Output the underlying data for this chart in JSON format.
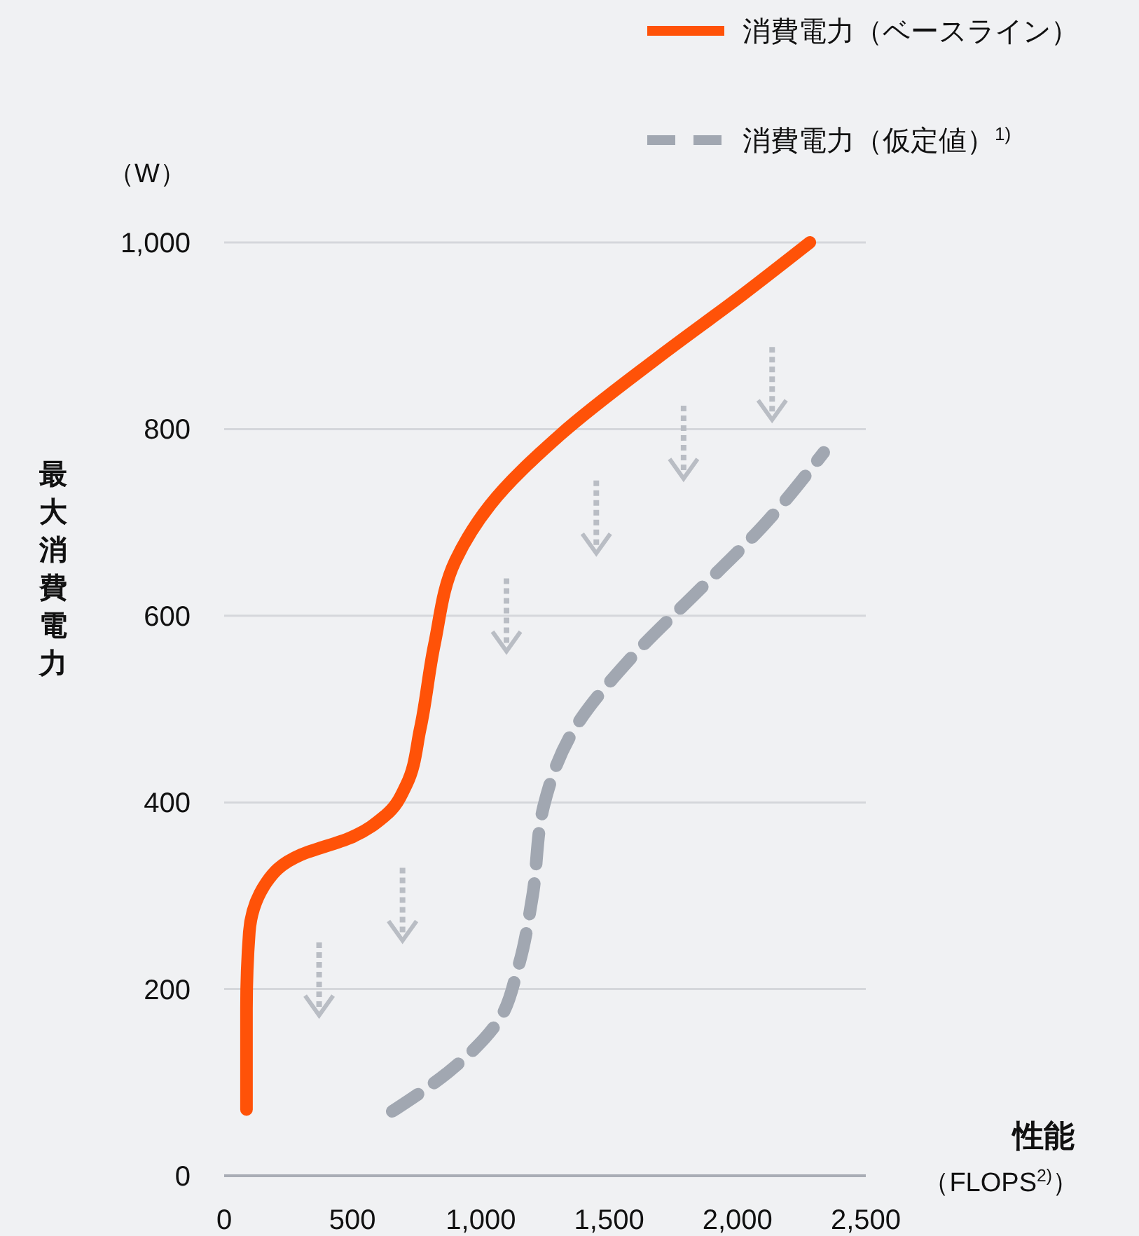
{
  "chart_data": {
    "type": "line",
    "xlabel": "性能",
    "ylabel": "最大消費電力",
    "annotations": [
      "（W）",
      "（FLOPS$^{2)}$）"
    ],
    "xlim": [
      0,
      2500
    ],
    "xticks": [
      0,
      {
        "value": 500,
        "label": "500"
      },
      {
        "value": 1000,
        "label": "1,000"
      },
      {
        "value": 1500,
        "label": "1,500"
      },
      {
        "value": 2000,
        "label": "2,000"
      },
      {
        "value": 2500,
        "label": "2,500"
      }
    ],
    "ylim": [
      0,
      1000
    ],
    "yticks": [
      0,
      200,
      400,
      600,
      800,
      {
        "value": 1000,
        "label": "1,000"
      }
    ],
    "grid": "y",
    "legend": "top right",
    "marker": "none",
    "series": [
      {
        "name": "消費電力（ベースライン）",
        "color": "#ff5208",
        "line_style": "solid",
        "x": [
          87,
          87,
          98,
          164,
          300,
          491,
          628,
          710,
          764,
          819,
          901,
          1037,
          1310,
          1692,
          2020,
          2282
        ],
        "values": [
          71,
          179,
          261,
          314,
          344,
          362,
          386,
          419,
          479,
          569,
          659,
          719,
          794,
          877,
          944,
          1000
        ]
      },
      {
        "name": "消費電力（仮定値）$^{1)}$",
        "color": "#a1a7b1",
        "line_style": "dashed",
        "x": [
          655,
          873,
          1064,
          1146,
          1201,
          1245,
          1365,
          1583,
          1856,
          2102,
          2336
        ],
        "values": [
          69,
          111,
          164,
          224,
          299,
          396,
          479,
          554,
          629,
          697,
          775
        ]
      }
    ]
  }
}
